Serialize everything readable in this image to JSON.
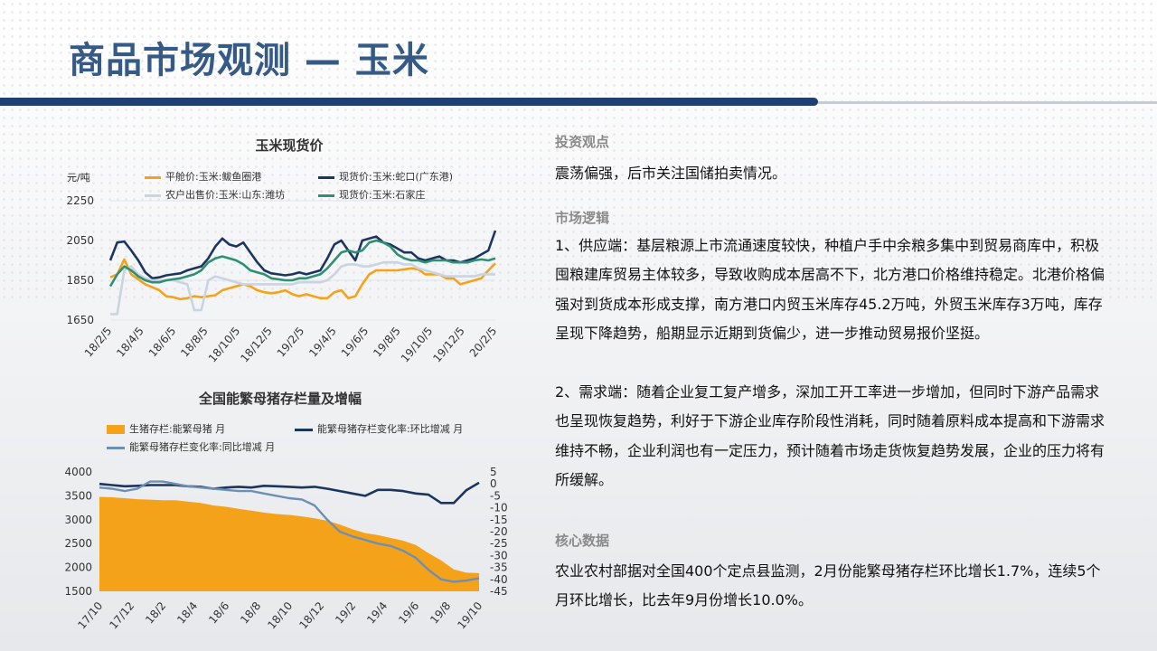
{
  "page": {
    "title": "商品市场观测 — 玉米"
  },
  "chart_data": [
    {
      "type": "line",
      "title": "玉米现货价",
      "ylabel": "元/吨",
      "ylim": [
        1650,
        2250
      ],
      "yticks": [
        1650,
        1850,
        2050,
        2250
      ],
      "x_ticks": [
        "18/2/5",
        "18/4/5",
        "18/6/5",
        "18/8/5",
        "18/10/5",
        "18/12/5",
        "19/2/5",
        "19/4/5",
        "19/6/5",
        "19/8/5",
        "19/10/5",
        "19/12/5",
        "20/2/5"
      ],
      "series": [
        {
          "name": "平舱价:玉米:鲅鱼圈港",
          "color": "#f5a21b",
          "values": [
            1865,
            1880,
            1955,
            1880,
            1855,
            1830,
            1815,
            1800,
            1770,
            1765,
            1755,
            1760,
            1770,
            1765,
            1770,
            1775,
            1800,
            1810,
            1820,
            1830,
            1820,
            1800,
            1790,
            1785,
            1790,
            1800,
            1780,
            1770,
            1780,
            1770,
            1760,
            1760,
            1790,
            1800,
            1760,
            1770,
            1830,
            1880,
            1900,
            1900,
            1900,
            1900,
            1905,
            1910,
            1905,
            1880,
            1880,
            1880,
            1860,
            1860,
            1830,
            1840,
            1850,
            1860,
            1900,
            1935
          ]
        },
        {
          "name": "现货价:玉米:蛇口(广东港)",
          "color": "#1c355e",
          "values": [
            1950,
            2040,
            2045,
            2000,
            1950,
            1890,
            1860,
            1865,
            1875,
            1880,
            1885,
            1900,
            1910,
            1920,
            1960,
            2020,
            2060,
            2030,
            2020,
            2040,
            1990,
            1940,
            1900,
            1885,
            1880,
            1875,
            1880,
            1890,
            1880,
            1890,
            1900,
            1960,
            2030,
            2050,
            2000,
            1950,
            2050,
            2060,
            2070,
            2040,
            2030,
            2010,
            1990,
            1990,
            1960,
            1950,
            1960,
            1970,
            1950,
            1950,
            1940,
            1950,
            1960,
            1980,
            2000,
            2100
          ]
        },
        {
          "name": "农户出售价:玉米:山东:潍坊",
          "color": "#c9d4e3",
          "values": [
            1680,
            1680,
            1900,
            1920,
            1880,
            1860,
            1850,
            1850,
            1850,
            1850,
            1840,
            1830,
            1700,
            1700,
            1850,
            1870,
            1860,
            1850,
            1840,
            1830,
            1830,
            1830,
            1830,
            1830,
            1830,
            1830,
            1830,
            1840,
            1840,
            1840,
            1840,
            1850,
            1880,
            1920,
            1930,
            1930,
            1920,
            1920,
            1930,
            1940,
            1940,
            1940,
            1930,
            1930,
            1910,
            1900,
            1890,
            1880,
            1870,
            1870,
            1870,
            1870,
            1870,
            1880,
            1880,
            1880
          ]
        },
        {
          "name": "现货价:玉米:石家庄",
          "color": "#2f8f73",
          "values": [
            1820,
            1880,
            1920,
            1900,
            1870,
            1850,
            1840,
            1840,
            1850,
            1855,
            1860,
            1870,
            1880,
            1900,
            1940,
            1960,
            1970,
            1960,
            1950,
            1930,
            1900,
            1890,
            1880,
            1860,
            1855,
            1850,
            1850,
            1860,
            1860,
            1870,
            1880,
            1910,
            1950,
            1990,
            2000,
            1990,
            2000,
            2040,
            2050,
            2040,
            2020,
            1980,
            1960,
            1950,
            1950,
            1940,
            1950,
            1950,
            1950,
            1940,
            1940,
            1940,
            1950,
            1955,
            1950,
            1960
          ]
        }
      ]
    },
    {
      "type": "area",
      "title": "全国能繁母猪存栏量及增幅",
      "ylim": [
        1500,
        4000
      ],
      "yticks": [
        1500,
        2000,
        2500,
        3000,
        3500,
        4000
      ],
      "y2lim": [
        -45,
        5
      ],
      "y2ticks": [
        5,
        0,
        -5,
        -10,
        -15,
        -20,
        -25,
        -30,
        -35,
        -40,
        -45
      ],
      "x_ticks": [
        "17/10",
        "17/12",
        "18/2",
        "18/4",
        "18/6",
        "18/8",
        "18/10",
        "18/12",
        "19/2",
        "19/4",
        "19/6",
        "19/8",
        "19/10"
      ],
      "series": [
        {
          "name": "生猪存栏:能繁母猪 月",
          "color": "#f5a21b",
          "axis": "left",
          "values": [
            3480,
            3470,
            3450,
            3430,
            3420,
            3410,
            3410,
            3380,
            3350,
            3300,
            3270,
            3230,
            3190,
            3150,
            3120,
            3100,
            3070,
            3030,
            2980,
            2900,
            2800,
            2720,
            2680,
            2620,
            2560,
            2470,
            2300,
            2150,
            1960,
            1890,
            1880
          ]
        },
        {
          "name": "能繁母猪存栏变化率:环比增减 月",
          "color": "#1c355e",
          "axis": "right",
          "values": [
            0,
            -0.5,
            -1,
            -0.8,
            -0.5,
            -0.5,
            -0.5,
            -1,
            -1.2,
            -2,
            -1.5,
            -1.2,
            -1.5,
            -0.8,
            -1,
            -1.2,
            -1.5,
            -1.2,
            -2,
            -3,
            -4,
            -5,
            -2.5,
            -2.5,
            -3,
            -4,
            -4.5,
            -8,
            -8,
            -2.6,
            0.5
          ]
        },
        {
          "name": "能繁母猪存栏变化率:同比增减 月",
          "color": "#6d8fb3",
          "axis": "right",
          "values": [
            -1.5,
            -2,
            -3,
            -2,
            1,
            1,
            0,
            -1,
            -1.5,
            -2,
            -2.5,
            -3,
            -3,
            -4,
            -5,
            -6,
            -6.5,
            -9,
            -15,
            -20,
            -22,
            -23.5,
            -25,
            -26,
            -28,
            -31,
            -36,
            -40,
            -41,
            -40.5,
            -39.5
          ]
        }
      ]
    }
  ],
  "panel": {
    "s1_heading": "投资观点",
    "s1_text": "震荡偏强，后市关注国储拍卖情况。",
    "s2_heading": "市场逻辑",
    "s2_p1": "1、供应端：基层粮源上市流通速度较快，种植户手中余粮多集中到贸易商库中，积极囤粮建库贸易主体较多，导致收购成本居高不下，北方港口价格维持稳定。北港价格偏强对到货成本形成支撑，南方港口内贸玉米库存45.2万吨，外贸玉米库存3万吨，库存呈现下降趋势，船期显示近期到货偏少，进一步推动贸易报价坚挺。",
    "s2_p2": "2、需求端：随着企业复工复产增多，深加工开工率进一步增加，但同时下游产品需求也呈现恢复趋势，利好于下游企业库存阶段性消耗，同时随着原料成本提高和下游需求维持不畅，企业利润也有一定压力，预计随着市场走货恢复趋势发展，企业的压力将有所缓解。",
    "s3_heading": "核心数据",
    "s3_text": "农业农村部据对全国400个定点县监测，2月份能繁母猪存栏环比增长1.7%，连续5个月环比增长，比去年9月份增长10.0%。"
  }
}
